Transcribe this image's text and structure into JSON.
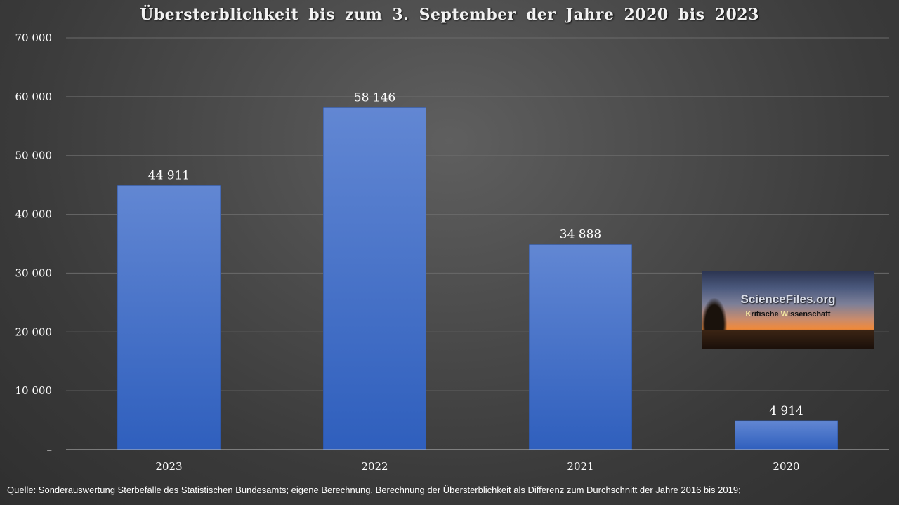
{
  "title": "Übersterblichkeit bis zum 3. September der Jahre 2020 bis 2023",
  "source": "Quelle: Sonderauswertung Sterbefälle des Statistischen Bundesamts; eigene Berechnung, Berechnung der Übersterblichkeit als Differenz zum Durchschnitt der Jahre 2016 bis 2019;",
  "logo": {
    "brand": "ScienceFiles.org",
    "tagline_k": "K",
    "tagline_rest1": "ritische ",
    "tagline_w": "W",
    "tagline_rest2": "issenschaft"
  },
  "colors": {
    "bar_top": "#6287d3",
    "bar_bottom": "#2f5fbd",
    "grid": "#6a6a6a",
    "axis": "#bfbfbf",
    "text": "#ffffff"
  },
  "chart_data": {
    "type": "bar",
    "title": "Übersterblichkeit bis zum 3. September der Jahre 2020 bis 2023",
    "categories": [
      "2023",
      "2022",
      "2021",
      "2020"
    ],
    "values": [
      44911,
      58146,
      34888,
      4914
    ],
    "value_labels": [
      "44 911",
      "58 146",
      "34 888",
      "4 914"
    ],
    "ylim": [
      0,
      70000
    ],
    "yticks": [
      0,
      10000,
      20000,
      30000,
      40000,
      50000,
      60000,
      70000
    ],
    "ytick_labels": [
      "–",
      "10 000",
      "20 000",
      "30 000",
      "40 000",
      "50 000",
      "60 000",
      "70 000"
    ],
    "grid": true,
    "legend": "none",
    "xlabel": "",
    "ylabel": ""
  }
}
